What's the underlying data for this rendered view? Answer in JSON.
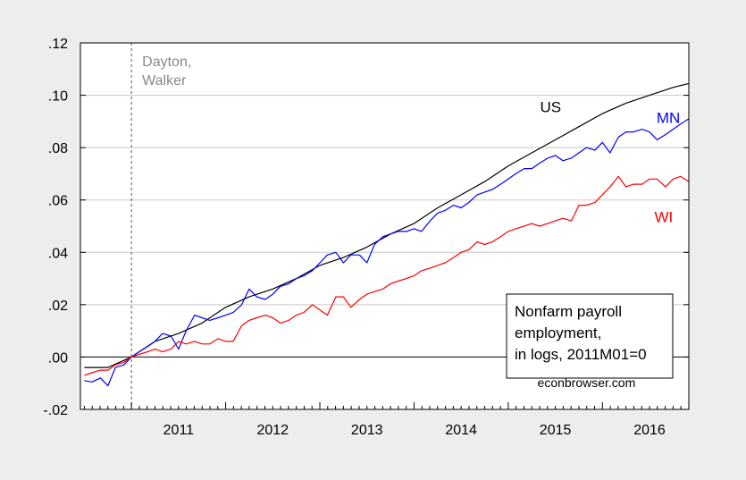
{
  "chart_data": {
    "type": "line",
    "title": "",
    "xlabel": "",
    "ylabel": "",
    "xlim": [
      2010.458,
      2016.917
    ],
    "ylim": [
      -0.02,
      0.12
    ],
    "grid": true,
    "x_ticks": [
      {
        "value": 2011.0,
        "label": "2011"
      },
      {
        "value": 2012.0,
        "label": "2012"
      },
      {
        "value": 2013.0,
        "label": "2013"
      },
      {
        "value": 2014.0,
        "label": "2014"
      },
      {
        "value": 2015.0,
        "label": "2015"
      },
      {
        "value": 2016.0,
        "label": "2016"
      }
    ],
    "y_ticks": [
      {
        "value": -0.02,
        "label": "-.02"
      },
      {
        "value": 0.0,
        "label": ".00"
      },
      {
        "value": 0.02,
        "label": ".02"
      },
      {
        "value": 0.04,
        "label": ".04"
      },
      {
        "value": 0.06,
        "label": ".06"
      },
      {
        "value": 0.08,
        "label": ".08"
      },
      {
        "value": 0.1,
        "label": ".10"
      },
      {
        "value": 0.12,
        "label": ".12"
      }
    ],
    "vline": {
      "x": 2011.0,
      "label_lines": [
        "Dayton,",
        "Walker"
      ]
    },
    "series": [
      {
        "name": "US",
        "color": "#000000",
        "label_anchor": [
          2015.45,
          0.0935
        ],
        "points": [
          [
            2010.5,
            -0.004
          ],
          [
            2010.75,
            -0.004
          ],
          [
            2011.0,
            0.0
          ],
          [
            2011.25,
            0.006
          ],
          [
            2011.5,
            0.009
          ],
          [
            2011.75,
            0.013
          ],
          [
            2012.0,
            0.019
          ],
          [
            2012.25,
            0.023
          ],
          [
            2012.5,
            0.026
          ],
          [
            2012.75,
            0.03
          ],
          [
            2013.0,
            0.035
          ],
          [
            2013.25,
            0.038
          ],
          [
            2013.5,
            0.042
          ],
          [
            2013.75,
            0.047
          ],
          [
            2014.0,
            0.051
          ],
          [
            2014.25,
            0.057
          ],
          [
            2014.5,
            0.062
          ],
          [
            2014.75,
            0.067
          ],
          [
            2015.0,
            0.073
          ],
          [
            2015.25,
            0.078
          ],
          [
            2015.5,
            0.083
          ],
          [
            2015.75,
            0.088
          ],
          [
            2016.0,
            0.093
          ],
          [
            2016.25,
            0.097
          ],
          [
            2016.5,
            0.1
          ],
          [
            2016.75,
            0.103
          ],
          [
            2016.917,
            0.1045
          ]
        ]
      },
      {
        "name": "MN",
        "color": "#0000ff",
        "label_anchor": [
          2016.7,
          0.0895
        ],
        "points": [
          [
            2010.5,
            -0.009
          ],
          [
            2010.58,
            -0.0095
          ],
          [
            2010.67,
            -0.008
          ],
          [
            2010.75,
            -0.011
          ],
          [
            2010.83,
            -0.004
          ],
          [
            2010.92,
            -0.003
          ],
          [
            2011.0,
            0.0
          ],
          [
            2011.08,
            0.002
          ],
          [
            2011.17,
            0.004
          ],
          [
            2011.25,
            0.006
          ],
          [
            2011.33,
            0.009
          ],
          [
            2011.42,
            0.008
          ],
          [
            2011.5,
            0.003
          ],
          [
            2011.58,
            0.01
          ],
          [
            2011.67,
            0.016
          ],
          [
            2011.75,
            0.015
          ],
          [
            2011.83,
            0.014
          ],
          [
            2011.92,
            0.015
          ],
          [
            2012.0,
            0.016
          ],
          [
            2012.08,
            0.017
          ],
          [
            2012.17,
            0.02
          ],
          [
            2012.25,
            0.026
          ],
          [
            2012.33,
            0.023
          ],
          [
            2012.42,
            0.022
          ],
          [
            2012.5,
            0.024
          ],
          [
            2012.58,
            0.027
          ],
          [
            2012.67,
            0.028
          ],
          [
            2012.75,
            0.03
          ],
          [
            2012.83,
            0.031
          ],
          [
            2012.92,
            0.033
          ],
          [
            2013.0,
            0.036
          ],
          [
            2013.08,
            0.039
          ],
          [
            2013.17,
            0.04
          ],
          [
            2013.25,
            0.036
          ],
          [
            2013.33,
            0.039
          ],
          [
            2013.42,
            0.039
          ],
          [
            2013.5,
            0.036
          ],
          [
            2013.58,
            0.043
          ],
          [
            2013.67,
            0.046
          ],
          [
            2013.75,
            0.047
          ],
          [
            2013.83,
            0.048
          ],
          [
            2013.92,
            0.048
          ],
          [
            2014.0,
            0.049
          ],
          [
            2014.08,
            0.048
          ],
          [
            2014.17,
            0.052
          ],
          [
            2014.25,
            0.055
          ],
          [
            2014.33,
            0.056
          ],
          [
            2014.42,
            0.058
          ],
          [
            2014.5,
            0.057
          ],
          [
            2014.58,
            0.059
          ],
          [
            2014.67,
            0.062
          ],
          [
            2014.75,
            0.063
          ],
          [
            2014.83,
            0.064
          ],
          [
            2014.92,
            0.066
          ],
          [
            2015.0,
            0.068
          ],
          [
            2015.08,
            0.07
          ],
          [
            2015.17,
            0.072
          ],
          [
            2015.25,
            0.072
          ],
          [
            2015.33,
            0.074
          ],
          [
            2015.42,
            0.076
          ],
          [
            2015.5,
            0.077
          ],
          [
            2015.58,
            0.075
          ],
          [
            2015.67,
            0.076
          ],
          [
            2015.75,
            0.078
          ],
          [
            2015.83,
            0.08
          ],
          [
            2015.92,
            0.079
          ],
          [
            2016.0,
            0.082
          ],
          [
            2016.08,
            0.078
          ],
          [
            2016.17,
            0.084
          ],
          [
            2016.25,
            0.086
          ],
          [
            2016.33,
            0.086
          ],
          [
            2016.42,
            0.087
          ],
          [
            2016.5,
            0.086
          ],
          [
            2016.58,
            0.083
          ],
          [
            2016.67,
            0.085
          ],
          [
            2016.75,
            0.087
          ],
          [
            2016.83,
            0.089
          ],
          [
            2016.917,
            0.091
          ]
        ]
      },
      {
        "name": "WI",
        "color": "#ff0000",
        "label_anchor": [
          2016.65,
          0.0515
        ],
        "points": [
          [
            2010.5,
            -0.007
          ],
          [
            2010.58,
            -0.006
          ],
          [
            2010.67,
            -0.005
          ],
          [
            2010.75,
            -0.005
          ],
          [
            2010.83,
            -0.003
          ],
          [
            2010.92,
            -0.002
          ],
          [
            2011.0,
            0.0
          ],
          [
            2011.08,
            0.001
          ],
          [
            2011.17,
            0.002
          ],
          [
            2011.25,
            0.003
          ],
          [
            2011.33,
            0.002
          ],
          [
            2011.42,
            0.003
          ],
          [
            2011.5,
            0.006
          ],
          [
            2011.58,
            0.005
          ],
          [
            2011.67,
            0.006
          ],
          [
            2011.75,
            0.005
          ],
          [
            2011.83,
            0.005
          ],
          [
            2011.92,
            0.007
          ],
          [
            2012.0,
            0.006
          ],
          [
            2012.08,
            0.006
          ],
          [
            2012.17,
            0.012
          ],
          [
            2012.25,
            0.014
          ],
          [
            2012.33,
            0.015
          ],
          [
            2012.42,
            0.016
          ],
          [
            2012.5,
            0.015
          ],
          [
            2012.58,
            0.013
          ],
          [
            2012.67,
            0.014
          ],
          [
            2012.75,
            0.016
          ],
          [
            2012.83,
            0.017
          ],
          [
            2012.92,
            0.02
          ],
          [
            2013.0,
            0.018
          ],
          [
            2013.08,
            0.016
          ],
          [
            2013.17,
            0.023
          ],
          [
            2013.25,
            0.023
          ],
          [
            2013.33,
            0.019
          ],
          [
            2013.42,
            0.022
          ],
          [
            2013.5,
            0.024
          ],
          [
            2013.58,
            0.025
          ],
          [
            2013.67,
            0.026
          ],
          [
            2013.75,
            0.028
          ],
          [
            2013.83,
            0.029
          ],
          [
            2013.92,
            0.03
          ],
          [
            2014.0,
            0.031
          ],
          [
            2014.08,
            0.033
          ],
          [
            2014.17,
            0.034
          ],
          [
            2014.25,
            0.035
          ],
          [
            2014.33,
            0.036
          ],
          [
            2014.42,
            0.038
          ],
          [
            2014.5,
            0.04
          ],
          [
            2014.58,
            0.041
          ],
          [
            2014.67,
            0.044
          ],
          [
            2014.75,
            0.043
          ],
          [
            2014.83,
            0.044
          ],
          [
            2014.92,
            0.046
          ],
          [
            2015.0,
            0.048
          ],
          [
            2015.08,
            0.049
          ],
          [
            2015.17,
            0.05
          ],
          [
            2015.25,
            0.051
          ],
          [
            2015.33,
            0.05
          ],
          [
            2015.42,
            0.051
          ],
          [
            2015.5,
            0.052
          ],
          [
            2015.58,
            0.053
          ],
          [
            2015.67,
            0.052
          ],
          [
            2015.75,
            0.058
          ],
          [
            2015.83,
            0.058
          ],
          [
            2015.92,
            0.059
          ],
          [
            2016.0,
            0.062
          ],
          [
            2016.08,
            0.065
          ],
          [
            2016.17,
            0.069
          ],
          [
            2016.25,
            0.065
          ],
          [
            2016.33,
            0.066
          ],
          [
            2016.42,
            0.066
          ],
          [
            2016.5,
            0.068
          ],
          [
            2016.58,
            0.068
          ],
          [
            2016.67,
            0.065
          ],
          [
            2016.75,
            0.068
          ],
          [
            2016.83,
            0.069
          ],
          [
            2016.917,
            0.067
          ]
        ]
      }
    ],
    "legend_box": {
      "lines": [
        "Nonfarm payroll",
        "employment,",
        "in logs, 2011M01=0"
      ],
      "placement": "bottom-right"
    },
    "source_note": "econbrowser.com"
  }
}
